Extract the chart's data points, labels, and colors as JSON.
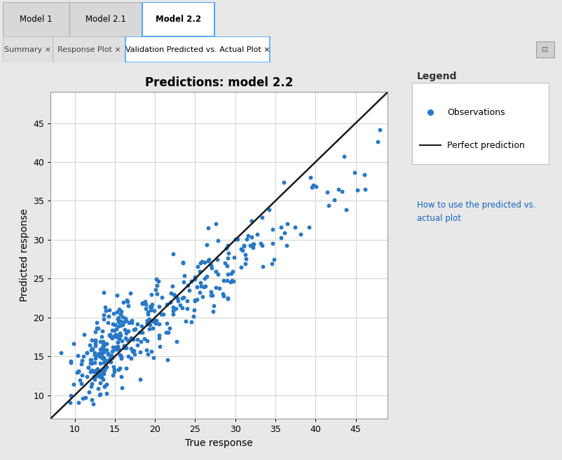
{
  "title": "Predictions: model 2.2",
  "xlabel": "True response",
  "ylabel": "Predicted response",
  "xlim": [
    7,
    49
  ],
  "ylim": [
    7,
    49
  ],
  "xticks": [
    10,
    15,
    20,
    25,
    30,
    35,
    40,
    45
  ],
  "yticks": [
    10,
    15,
    20,
    25,
    30,
    35,
    40,
    45
  ],
  "dot_color": "#2878c8",
  "line_color": "#1a1a1a",
  "bg_color": "#e8e8e8",
  "panel_color": "#f0f0f0",
  "plot_bg_color": "#ffffff",
  "grid_color": "#d0d0d0",
  "legend_title": "Legend",
  "legend_obs": "Observations",
  "legend_pred": "Perfect prediction",
  "link_color": "#1464c8",
  "title_fontsize": 12,
  "label_fontsize": 10,
  "tick_fontsize": 9,
  "seed": 42
}
